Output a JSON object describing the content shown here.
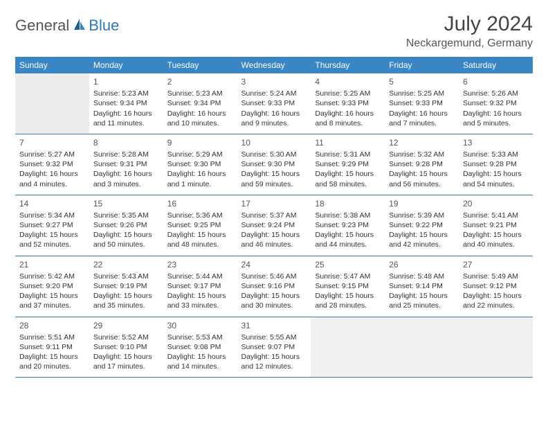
{
  "logo": {
    "part1": "General",
    "part2": "Blue"
  },
  "title": "July 2024",
  "location": "Neckargemund, Germany",
  "colors": {
    "accent": "#3a86c5",
    "border": "#3a7db0",
    "logo_blue": "#2f78b9",
    "text": "#333333",
    "muted": "#555555",
    "blank_bg": "#ececec"
  },
  "days_of_week": [
    "Sunday",
    "Monday",
    "Tuesday",
    "Wednesday",
    "Thursday",
    "Friday",
    "Saturday"
  ],
  "weeks": [
    [
      null,
      {
        "n": "1",
        "sunrise": "Sunrise: 5:23 AM",
        "sunset": "Sunset: 9:34 PM",
        "daylight": "Daylight: 16 hours and 11 minutes."
      },
      {
        "n": "2",
        "sunrise": "Sunrise: 5:23 AM",
        "sunset": "Sunset: 9:34 PM",
        "daylight": "Daylight: 16 hours and 10 minutes."
      },
      {
        "n": "3",
        "sunrise": "Sunrise: 5:24 AM",
        "sunset": "Sunset: 9:33 PM",
        "daylight": "Daylight: 16 hours and 9 minutes."
      },
      {
        "n": "4",
        "sunrise": "Sunrise: 5:25 AM",
        "sunset": "Sunset: 9:33 PM",
        "daylight": "Daylight: 16 hours and 8 minutes."
      },
      {
        "n": "5",
        "sunrise": "Sunrise: 5:25 AM",
        "sunset": "Sunset: 9:33 PM",
        "daylight": "Daylight: 16 hours and 7 minutes."
      },
      {
        "n": "6",
        "sunrise": "Sunrise: 5:26 AM",
        "sunset": "Sunset: 9:32 PM",
        "daylight": "Daylight: 16 hours and 5 minutes."
      }
    ],
    [
      {
        "n": "7",
        "sunrise": "Sunrise: 5:27 AM",
        "sunset": "Sunset: 9:32 PM",
        "daylight": "Daylight: 16 hours and 4 minutes."
      },
      {
        "n": "8",
        "sunrise": "Sunrise: 5:28 AM",
        "sunset": "Sunset: 9:31 PM",
        "daylight": "Daylight: 16 hours and 3 minutes."
      },
      {
        "n": "9",
        "sunrise": "Sunrise: 5:29 AM",
        "sunset": "Sunset: 9:30 PM",
        "daylight": "Daylight: 16 hours and 1 minute."
      },
      {
        "n": "10",
        "sunrise": "Sunrise: 5:30 AM",
        "sunset": "Sunset: 9:30 PM",
        "daylight": "Daylight: 15 hours and 59 minutes."
      },
      {
        "n": "11",
        "sunrise": "Sunrise: 5:31 AM",
        "sunset": "Sunset: 9:29 PM",
        "daylight": "Daylight: 15 hours and 58 minutes."
      },
      {
        "n": "12",
        "sunrise": "Sunrise: 5:32 AM",
        "sunset": "Sunset: 9:28 PM",
        "daylight": "Daylight: 15 hours and 56 minutes."
      },
      {
        "n": "13",
        "sunrise": "Sunrise: 5:33 AM",
        "sunset": "Sunset: 9:28 PM",
        "daylight": "Daylight: 15 hours and 54 minutes."
      }
    ],
    [
      {
        "n": "14",
        "sunrise": "Sunrise: 5:34 AM",
        "sunset": "Sunset: 9:27 PM",
        "daylight": "Daylight: 15 hours and 52 minutes."
      },
      {
        "n": "15",
        "sunrise": "Sunrise: 5:35 AM",
        "sunset": "Sunset: 9:26 PM",
        "daylight": "Daylight: 15 hours and 50 minutes."
      },
      {
        "n": "16",
        "sunrise": "Sunrise: 5:36 AM",
        "sunset": "Sunset: 9:25 PM",
        "daylight": "Daylight: 15 hours and 48 minutes."
      },
      {
        "n": "17",
        "sunrise": "Sunrise: 5:37 AM",
        "sunset": "Sunset: 9:24 PM",
        "daylight": "Daylight: 15 hours and 46 minutes."
      },
      {
        "n": "18",
        "sunrise": "Sunrise: 5:38 AM",
        "sunset": "Sunset: 9:23 PM",
        "daylight": "Daylight: 15 hours and 44 minutes."
      },
      {
        "n": "19",
        "sunrise": "Sunrise: 5:39 AM",
        "sunset": "Sunset: 9:22 PM",
        "daylight": "Daylight: 15 hours and 42 minutes."
      },
      {
        "n": "20",
        "sunrise": "Sunrise: 5:41 AM",
        "sunset": "Sunset: 9:21 PM",
        "daylight": "Daylight: 15 hours and 40 minutes."
      }
    ],
    [
      {
        "n": "21",
        "sunrise": "Sunrise: 5:42 AM",
        "sunset": "Sunset: 9:20 PM",
        "daylight": "Daylight: 15 hours and 37 minutes."
      },
      {
        "n": "22",
        "sunrise": "Sunrise: 5:43 AM",
        "sunset": "Sunset: 9:19 PM",
        "daylight": "Daylight: 15 hours and 35 minutes."
      },
      {
        "n": "23",
        "sunrise": "Sunrise: 5:44 AM",
        "sunset": "Sunset: 9:17 PM",
        "daylight": "Daylight: 15 hours and 33 minutes."
      },
      {
        "n": "24",
        "sunrise": "Sunrise: 5:46 AM",
        "sunset": "Sunset: 9:16 PM",
        "daylight": "Daylight: 15 hours and 30 minutes."
      },
      {
        "n": "25",
        "sunrise": "Sunrise: 5:47 AM",
        "sunset": "Sunset: 9:15 PM",
        "daylight": "Daylight: 15 hours and 28 minutes."
      },
      {
        "n": "26",
        "sunrise": "Sunrise: 5:48 AM",
        "sunset": "Sunset: 9:14 PM",
        "daylight": "Daylight: 15 hours and 25 minutes."
      },
      {
        "n": "27",
        "sunrise": "Sunrise: 5:49 AM",
        "sunset": "Sunset: 9:12 PM",
        "daylight": "Daylight: 15 hours and 22 minutes."
      }
    ],
    [
      {
        "n": "28",
        "sunrise": "Sunrise: 5:51 AM",
        "sunset": "Sunset: 9:11 PM",
        "daylight": "Daylight: 15 hours and 20 minutes."
      },
      {
        "n": "29",
        "sunrise": "Sunrise: 5:52 AM",
        "sunset": "Sunset: 9:10 PM",
        "daylight": "Daylight: 15 hours and 17 minutes."
      },
      {
        "n": "30",
        "sunrise": "Sunrise: 5:53 AM",
        "sunset": "Sunset: 9:08 PM",
        "daylight": "Daylight: 15 hours and 14 minutes."
      },
      {
        "n": "31",
        "sunrise": "Sunrise: 5:55 AM",
        "sunset": "Sunset: 9:07 PM",
        "daylight": "Daylight: 15 hours and 12 minutes."
      },
      null,
      null,
      null
    ]
  ]
}
